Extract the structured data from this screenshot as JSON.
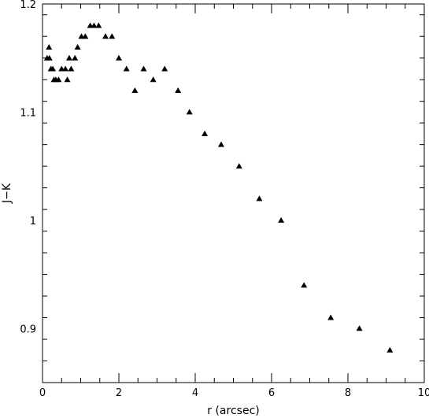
{
  "chart_data": {
    "type": "scatter",
    "title": "",
    "xlabel": "r (arcsec)",
    "ylabel": "J−K",
    "xlim": [
      0,
      10
    ],
    "ylim": [
      0.85,
      1.2
    ],
    "grid": false,
    "marker": "filled-triangle",
    "x_ticks": [
      0,
      2,
      4,
      6,
      8,
      10
    ],
    "x_tick_labels": [
      "0",
      "2",
      "4",
      "6",
      "8",
      "10"
    ],
    "y_ticks": [
      0.9,
      1.0,
      1.1,
      1.2
    ],
    "y_tick_labels": [
      "0.9",
      "1",
      "1.1",
      "1.2"
    ],
    "points": [
      [
        0.17,
        1.16
      ],
      [
        0.12,
        1.15
      ],
      [
        0.18,
        1.15
      ],
      [
        0.22,
        1.14
      ],
      [
        0.27,
        1.14
      ],
      [
        0.3,
        1.13
      ],
      [
        0.35,
        1.13
      ],
      [
        0.42,
        1.13
      ],
      [
        0.5,
        1.14
      ],
      [
        0.6,
        1.14
      ],
      [
        0.65,
        1.13
      ],
      [
        0.7,
        1.15
      ],
      [
        0.75,
        1.14
      ],
      [
        0.85,
        1.15
      ],
      [
        0.92,
        1.16
      ],
      [
        1.02,
        1.17
      ],
      [
        1.12,
        1.17
      ],
      [
        1.25,
        1.18
      ],
      [
        1.35,
        1.18
      ],
      [
        1.47,
        1.18
      ],
      [
        1.65,
        1.17
      ],
      [
        1.82,
        1.17
      ],
      [
        2.0,
        1.15
      ],
      [
        2.2,
        1.14
      ],
      [
        2.42,
        1.12
      ],
      [
        2.65,
        1.14
      ],
      [
        2.9,
        1.13
      ],
      [
        3.2,
        1.14
      ],
      [
        3.55,
        1.12
      ],
      [
        3.85,
        1.1
      ],
      [
        4.25,
        1.08
      ],
      [
        4.68,
        1.07
      ],
      [
        5.15,
        1.05
      ],
      [
        5.68,
        1.02
      ],
      [
        6.25,
        1.0
      ],
      [
        6.85,
        0.94
      ],
      [
        7.55,
        0.91
      ],
      [
        8.3,
        0.9
      ],
      [
        9.1,
        0.88
      ]
    ]
  }
}
